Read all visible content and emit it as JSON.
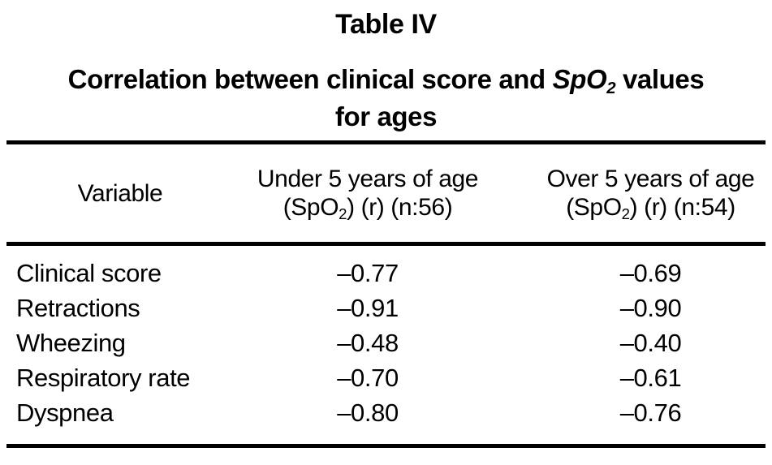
{
  "page": {
    "background": "#ffffff",
    "text_color": "#000000",
    "rule_color": "#000000"
  },
  "table": {
    "label": "Table IV",
    "caption": {
      "part1": "Correlation between clinical score and ",
      "spo_term": "SpO",
      "spo_sub": "2",
      "part2": " values",
      "line2": "for ages"
    },
    "columns": [
      {
        "title": "Variable"
      },
      {
        "line1": "Under 5 years of age",
        "line2_pre": "(SpO",
        "line2_sub": "2",
        "line2_post": ") (r) (n:56)"
      },
      {
        "line1": "Over 5 years of age",
        "line2_pre": "(SpO",
        "line2_sub": "2",
        "line2_post": ") (r) (n:54)"
      }
    ],
    "rows": [
      {
        "variable": "Clinical score",
        "under5": "–0.77",
        "over5": "–0.69"
      },
      {
        "variable": "Retractions",
        "under5": "–0.91",
        "over5": "–0.90"
      },
      {
        "variable": "Wheezing",
        "under5": "–0.48",
        "over5": "–0.40"
      },
      {
        "variable": "Respiratory rate",
        "under5": "–0.70",
        "over5": "–0.61"
      },
      {
        "variable": "Dyspnea",
        "under5": "–0.80",
        "over5": "–0.76"
      }
    ]
  },
  "chart_data": {
    "type": "table",
    "title": "Table IV — Correlation between clinical score and SpO2 values for ages",
    "columns": [
      "Variable",
      "Under 5 years of age (SpO2) (r) (n:56)",
      "Over 5 years of age (SpO2) (r) (n:54)"
    ],
    "rows": [
      [
        "Clinical score",
        -0.77,
        -0.69
      ],
      [
        "Retractions",
        -0.91,
        -0.9
      ],
      [
        "Wheezing",
        -0.48,
        -0.4
      ],
      [
        "Respiratory rate",
        -0.7,
        -0.61
      ],
      [
        "Dyspnea",
        -0.8,
        -0.76
      ]
    ]
  }
}
